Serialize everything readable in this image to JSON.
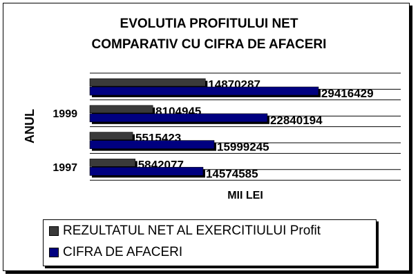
{
  "chart_data": {
    "type": "bar",
    "orientation": "horizontal",
    "title": "EVOLUTIA PROFITULUI NET\nCOMPARATIV CU CIFRA DE AFACERI",
    "title_lines": [
      "EVOLUTIA PROFITULUI NET",
      "COMPARATIV CU CIFRA DE AFACERI"
    ],
    "xlabel": "MII LEI",
    "ylabel": "ANUL",
    "categories": [
      "1997",
      "",
      "1999",
      ""
    ],
    "series": [
      {
        "name": "REZULTATUL NET AL EXERCITIULUI Profit",
        "color": "#3a3a3a",
        "values": [
          5842077,
          5515423,
          8104945,
          14870287
        ]
      },
      {
        "name": "CIFRA DE AFACERI",
        "color": "#000080",
        "values": [
          14574585,
          15999245,
          22840194,
          29416429
        ]
      }
    ],
    "xlim": [
      0,
      40000000
    ],
    "grid": true,
    "data_labels": true,
    "legend_position": "bottom"
  }
}
